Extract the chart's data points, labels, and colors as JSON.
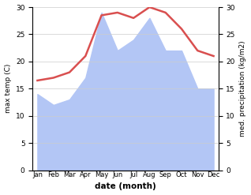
{
  "months": [
    "Jan",
    "Feb",
    "Mar",
    "Apr",
    "May",
    "Jun",
    "Jul",
    "Aug",
    "Sep",
    "Oct",
    "Nov",
    "Dec"
  ],
  "max_temp": [
    16.5,
    17,
    18,
    21,
    28.5,
    29,
    28,
    30,
    29,
    26,
    22,
    21
  ],
  "med_precip": [
    14,
    12,
    13,
    17,
    29,
    22,
    24,
    28,
    22,
    22,
    15,
    15
  ],
  "temp_color": "#d94f4f",
  "precip_color_fill": "#b3c6f5",
  "ylabel_left": "max temp (C)",
  "ylabel_right": "med. precipitation (kg/m2)",
  "xlabel": "date (month)",
  "ylim_left": [
    0,
    30
  ],
  "ylim_right": [
    0,
    30
  ],
  "background_color": "#ffffff",
  "grid_color": "#cccccc"
}
